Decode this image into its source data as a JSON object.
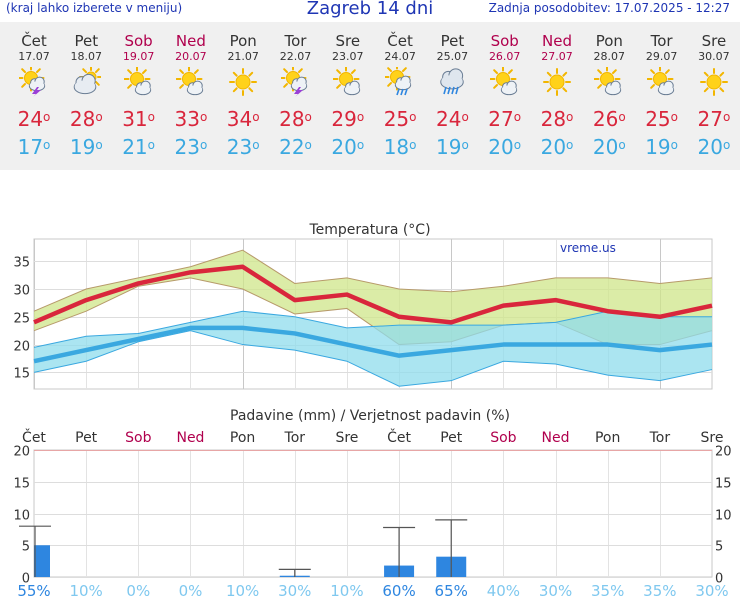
{
  "header": {
    "hint": "(kraj lahko izberete v meniju)",
    "title": "Zagreb 14 dni",
    "updated": "Zadnja posodobitev: 17.07.2025 - 12:27"
  },
  "colors": {
    "weekend": "#b0004d",
    "max_temp": "#d9263c",
    "min_temp": "#3aa8e0",
    "precip_bar": "#2e86e0"
  },
  "days": [
    {
      "name": "Čet",
      "date": "17.07",
      "weekend": false,
      "icon": "sun-cloud-thunder-icon",
      "tmax": "24",
      "tmin": "17"
    },
    {
      "name": "Pet",
      "date": "18.07",
      "weekend": false,
      "icon": "cloudy-icon",
      "tmax": "28",
      "tmin": "19"
    },
    {
      "name": "Sob",
      "date": "19.07",
      "weekend": true,
      "icon": "sun-small-cloud-icon",
      "tmax": "31",
      "tmin": "21"
    },
    {
      "name": "Ned",
      "date": "20.07",
      "weekend": true,
      "icon": "sun-small-cloud-icon",
      "tmax": "33",
      "tmin": "23"
    },
    {
      "name": "Pon",
      "date": "21.07",
      "weekend": false,
      "icon": "sun-icon",
      "tmax": "34",
      "tmin": "23"
    },
    {
      "name": "Tor",
      "date": "22.07",
      "weekend": false,
      "icon": "sun-cloud-thunder-icon",
      "tmax": "28",
      "tmin": "22"
    },
    {
      "name": "Sre",
      "date": "23.07",
      "weekend": false,
      "icon": "sun-small-cloud-icon",
      "tmax": "29",
      "tmin": "20"
    },
    {
      "name": "Čet",
      "date": "24.07",
      "weekend": false,
      "icon": "sun-cloud-rain-icon",
      "tmax": "25",
      "tmin": "18"
    },
    {
      "name": "Pet",
      "date": "25.07",
      "weekend": false,
      "icon": "cloud-rain-icon",
      "tmax": "24",
      "tmin": "19"
    },
    {
      "name": "Sob",
      "date": "26.07",
      "weekend": true,
      "icon": "sun-small-cloud-icon",
      "tmax": "27",
      "tmin": "20"
    },
    {
      "name": "Ned",
      "date": "27.07",
      "weekend": true,
      "icon": "sun-icon",
      "tmax": "28",
      "tmin": "20"
    },
    {
      "name": "Pon",
      "date": "28.07",
      "weekend": false,
      "icon": "sun-small-cloud-icon",
      "tmax": "26",
      "tmin": "20"
    },
    {
      "name": "Tor",
      "date": "29.07",
      "weekend": false,
      "icon": "sun-small-cloud-icon",
      "tmax": "25",
      "tmin": "19"
    },
    {
      "name": "Sre",
      "date": "30.07",
      "weekend": false,
      "icon": "sun-icon",
      "tmax": "27",
      "tmin": "20"
    }
  ],
  "chart_data": [
    {
      "type": "line",
      "title": "Temperatura (°C)",
      "watermark": "vreme.us",
      "categories": [
        "Čet",
        "Pet",
        "Sob",
        "Ned",
        "Pon",
        "Tor",
        "Sre",
        "Čet",
        "Pet",
        "Sob",
        "Ned",
        "Pon",
        "Tor",
        "Sre"
      ],
      "ylim": [
        12,
        39
      ],
      "yticks": [
        15,
        20,
        25,
        30,
        35
      ],
      "grid": true,
      "series": [
        {
          "values": [
            24,
            28,
            31,
            33,
            34,
            28,
            29,
            25,
            24,
            27,
            28,
            26,
            25,
            27
          ]
        },
        {
          "values": [
            17,
            19,
            21,
            23,
            23,
            22,
            20,
            18,
            19,
            20,
            20,
            20,
            19,
            20
          ]
        },
        {
          "values": [
            26,
            30,
            32,
            34,
            37,
            31,
            32,
            30,
            29.5,
            30.5,
            32,
            32,
            31,
            32
          ]
        },
        {
          "values": [
            22.5,
            26,
            30.5,
            32,
            30,
            25.5,
            26.5,
            20,
            20.5,
            23.5,
            24,
            20,
            20,
            22.5
          ]
        },
        {
          "values": [
            19.5,
            21.5,
            22,
            24,
            26,
            25,
            23,
            23.5,
            23.5,
            23.5,
            24,
            26,
            25,
            25
          ]
        },
        {
          "values": [
            15,
            17,
            20.5,
            22.5,
            20,
            19,
            17,
            12.5,
            13.5,
            17,
            16.5,
            14.5,
            13.5,
            15.5
          ]
        }
      ]
    },
    {
      "type": "bar",
      "title": "Padavine (mm) / Verjetnost padavin (%)",
      "categories": [
        "Čet",
        "Pet",
        "Sob",
        "Ned",
        "Pon",
        "Tor",
        "Sre",
        "Čet",
        "Pet",
        "Sob",
        "Ned",
        "Pon",
        "Tor",
        "Sre"
      ],
      "ylim": [
        0,
        20
      ],
      "yticks": [
        0,
        5,
        10,
        15,
        20
      ],
      "grid": true,
      "values": [
        5,
        0,
        0,
        0,
        0,
        0.2,
        0,
        1.8,
        3.2,
        0,
        0,
        0,
        0,
        0
      ],
      "error_high": [
        8,
        0,
        0,
        0,
        0,
        1.2,
        0,
        7.8,
        9,
        0,
        0,
        0,
        0,
        0
      ],
      "probability": [
        "55%",
        "10%",
        "0%",
        "0%",
        "10%",
        "30%",
        "10%",
        "60%",
        "65%",
        "40%",
        "30%",
        "35%",
        "35%",
        "30%"
      ]
    }
  ]
}
